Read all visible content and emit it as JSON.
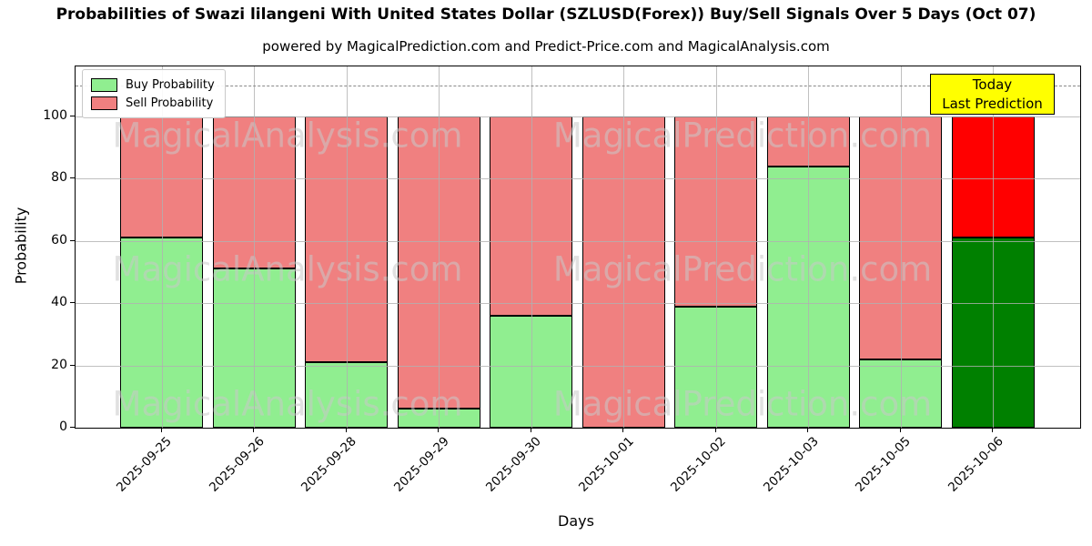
{
  "chart_data": {
    "type": "bar",
    "stacked": true,
    "title": "Probabilities of Swazi lilangeni With United States Dollar (SZLUSD(Forex)) Buy/Sell Signals Over 5 Days (Oct 07)",
    "subtitle": "powered by MagicalPrediction.com and Predict-Price.com and MagicalAnalysis.com",
    "categories": [
      "2025-09-25",
      "2025-09-26",
      "2025-09-28",
      "2025-09-29",
      "2025-09-30",
      "2025-10-01",
      "2025-10-02",
      "2025-10-03",
      "2025-10-05",
      "2025-10-06"
    ],
    "series": [
      {
        "name": "Buy Probability",
        "values": [
          61,
          51,
          21,
          6,
          36,
          0,
          39,
          84,
          22,
          61
        ],
        "color": "#90EE90",
        "today_color": "#008000"
      },
      {
        "name": "Sell Probability",
        "values": [
          39,
          49,
          79,
          94,
          64,
          100,
          61,
          16,
          78,
          39
        ],
        "color": "#F08080",
        "today_color": "#FF0000"
      }
    ],
    "xlabel": "Days",
    "ylabel": "Probability",
    "yticks": [
      0,
      20,
      40,
      60,
      80,
      100
    ],
    "ylim": [
      0,
      116
    ],
    "dashed_line_y": 110,
    "grid": true,
    "legend_position": "upper left",
    "bar_edge_color": "#000000"
  },
  "annotation": {
    "line1": "Today",
    "line2": "Last Prediction",
    "bg_color": "#FFFF00"
  },
  "watermarks": {
    "left_text": "MagicalAnalysis.com",
    "right_text": "MagicalPrediction.com",
    "row_count": 3
  }
}
